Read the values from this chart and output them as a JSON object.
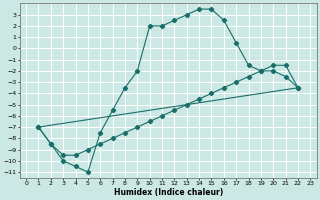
{
  "xlabel": "Humidex (Indice chaleur)",
  "bg_color": "#cce8e4",
  "grid_color": "#ffffff",
  "line_color": "#1a6e6a",
  "xlim": [
    -0.5,
    23.5
  ],
  "ylim": [
    -11.5,
    4.0
  ],
  "xticks": [
    0,
    1,
    2,
    3,
    4,
    5,
    6,
    7,
    8,
    9,
    10,
    11,
    12,
    13,
    14,
    15,
    16,
    17,
    18,
    19,
    20,
    21,
    22,
    23
  ],
  "yticks": [
    3,
    2,
    1,
    0,
    -1,
    -2,
    -3,
    -4,
    -5,
    -6,
    -7,
    -8,
    -9,
    -10,
    -11
  ],
  "line1_x": [
    1,
    2,
    3,
    4,
    5,
    6,
    7,
    8,
    9,
    10,
    11,
    12,
    13,
    14,
    15,
    16,
    17,
    18,
    19,
    20,
    21,
    22
  ],
  "line1_y": [
    -7,
    -8.5,
    -10,
    -10.5,
    -11,
    -7.5,
    -5.5,
    -3.5,
    -2,
    2,
    2,
    2.5,
    3,
    3.5,
    3.5,
    2.5,
    0.5,
    -1.5,
    -2,
    -2,
    -2.5,
    -3.5
  ],
  "line2_x": [
    1,
    2,
    3,
    4,
    5,
    6,
    7,
    8,
    9,
    10,
    11,
    12,
    13,
    14,
    15,
    16,
    17,
    18,
    19,
    20,
    21,
    22
  ],
  "line2_y": [
    -7,
    -8.5,
    -9.5,
    -9.5,
    -9,
    -8.5,
    -8.0,
    -7.5,
    -7.0,
    -6.5,
    -6.0,
    -5.5,
    -5.0,
    -4.5,
    -4.0,
    -3.5,
    -3.0,
    -2.5,
    -2.0,
    -1.5,
    -1.5,
    -3.5
  ],
  "line3_x": [
    1,
    22
  ],
  "line3_y": [
    -7,
    -3.5
  ]
}
